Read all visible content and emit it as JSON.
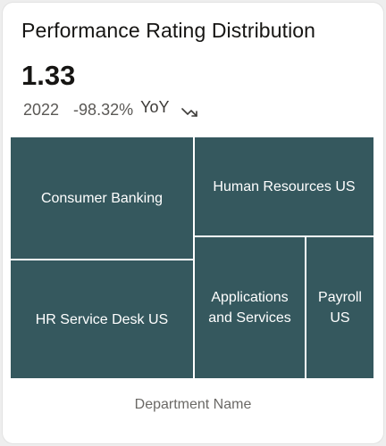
{
  "card": {
    "title": "Performance Rating Distribution",
    "metric_value": "1.33",
    "year": "2022",
    "change": "-98.32%",
    "change_label": "YoY",
    "trend_icon": "trend-down-icon"
  },
  "treemap": {
    "tile_color": "#35585e",
    "tiles": [
      {
        "label": "Consumer Banking"
      },
      {
        "label": "Human Resources US"
      },
      {
        "label": "HR Service Desk US"
      },
      {
        "label": "Applications and Services"
      },
      {
        "label": "Payroll US"
      }
    ]
  },
  "footer": {
    "dimension_label": "Department Name"
  }
}
